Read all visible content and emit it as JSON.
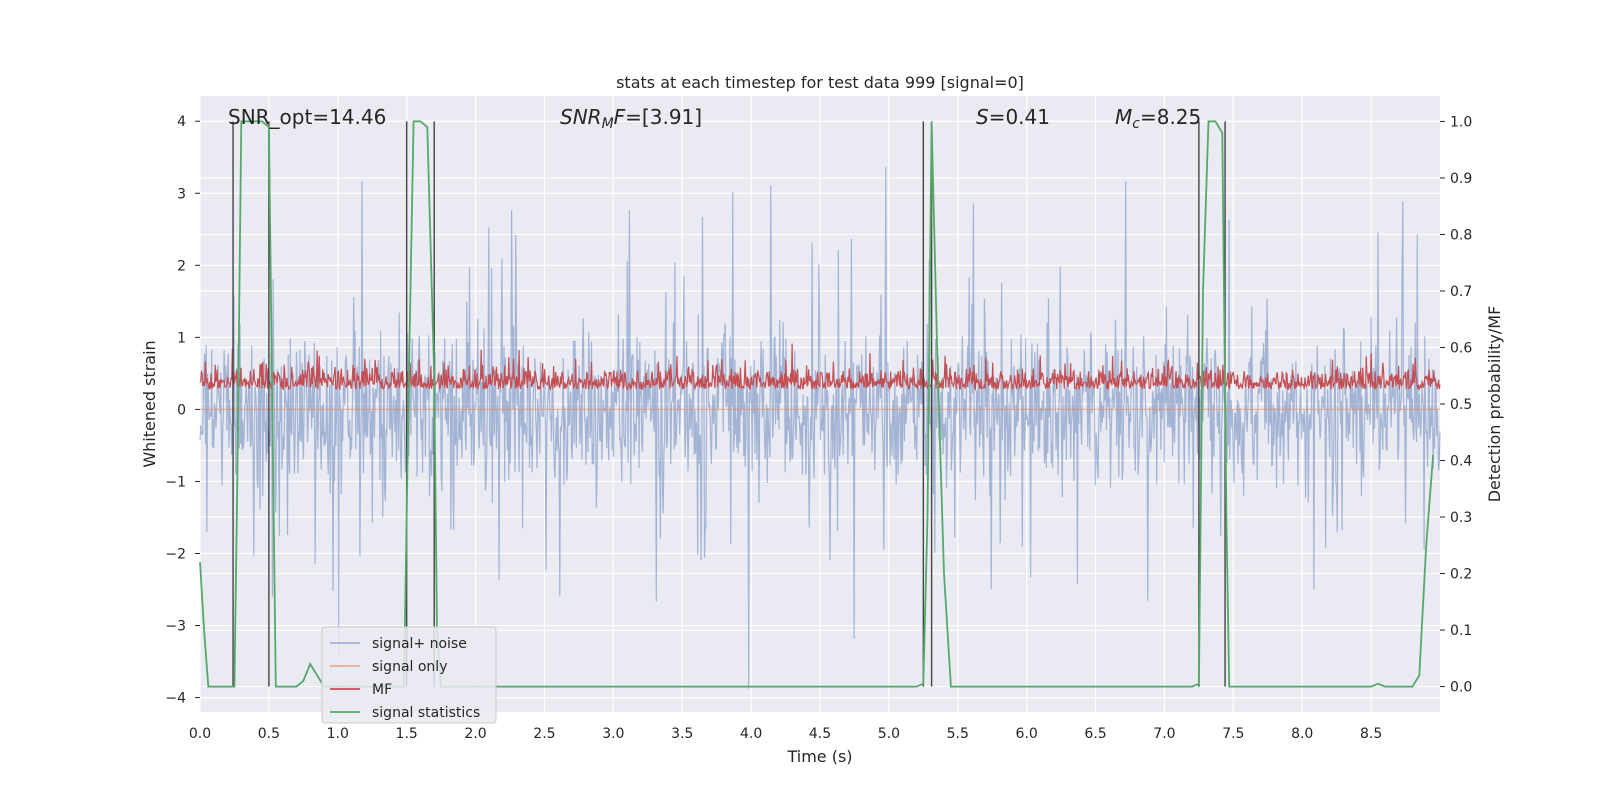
{
  "chart_data": {
    "type": "line",
    "title": "stats at each timestep for test data 999 [signal=0]",
    "xlabel": "Time (s)",
    "ylabel": "Whitened strain",
    "ylabel_right": "Detection probability/MF",
    "xlim": [
      0.0,
      9.0
    ],
    "ylim": [
      -4.2,
      4.35
    ],
    "ylim_right": [
      -0.045,
      1.045
    ],
    "xticks": [
      "0.0",
      "0.5",
      "1.0",
      "1.5",
      "2.0",
      "2.5",
      "3.0",
      "3.5",
      "4.0",
      "4.5",
      "5.0",
      "5.5",
      "6.0",
      "6.5",
      "7.0",
      "7.5",
      "8.0",
      "8.5"
    ],
    "yticks": [
      "4",
      "3",
      "2",
      "1",
      "0",
      "−1",
      "−2",
      "−3",
      "−4"
    ],
    "yticks_right": [
      "1.0",
      "0.9",
      "0.8",
      "0.7",
      "0.6",
      "0.5",
      "0.4",
      "0.3",
      "0.2",
      "0.1",
      "0.0"
    ],
    "grid": true,
    "legend_position": "lower-left",
    "colors": {
      "signal_noise": "#4c72b0",
      "signal_only": "#dd8452",
      "mf": "#c44e52",
      "signal_statistics": "#55a868",
      "markers": "#444444",
      "background": "#eaeaf2"
    },
    "annotations": {
      "snr_opt": "SNR_opt=14.46",
      "snr_mf_prefix": "SNR",
      "snr_mf_sub": "M",
      "snr_mf_suffix": "F",
      "snr_mf_value": "=[3.91]",
      "s_symbol": "S",
      "s_value": "=0.41",
      "mc_symbol": "M",
      "mc_sub": "c",
      "mc_value": "=8.25"
    },
    "series": [
      {
        "name": "signal+ noise",
        "axis": "left",
        "style": "noisy band, approx. range -3.9 to 3.9, bulk within ±1.5"
      },
      {
        "name": "signal only",
        "axis": "left",
        "values_constant": 0.0
      },
      {
        "name": "MF",
        "axis": "left",
        "style": "noisy, approx. 0.0 to 0.9"
      },
      {
        "name": "signal statistics",
        "axis": "right",
        "x": [
          0.0,
          0.03,
          0.06,
          0.1,
          0.15,
          0.2,
          0.25,
          0.27,
          0.3,
          0.35,
          0.4,
          0.45,
          0.5,
          0.52,
          0.55,
          0.6,
          0.65,
          0.7,
          0.75,
          0.8,
          0.85,
          0.9,
          0.95,
          1.0,
          1.1,
          1.2,
          1.3,
          1.4,
          1.48,
          1.52,
          1.55,
          1.6,
          1.65,
          1.7,
          1.72,
          1.75,
          1.8,
          1.85,
          2.0,
          2.5,
          3.0,
          3.5,
          4.0,
          4.5,
          5.0,
          5.2,
          5.25,
          5.28,
          5.31,
          5.35,
          5.4,
          5.45,
          5.5,
          6.0,
          6.5,
          7.0,
          7.2,
          7.25,
          7.28,
          7.32,
          7.37,
          7.42,
          7.45,
          7.47,
          7.5,
          8.0,
          8.5,
          8.55,
          8.6,
          8.8,
          8.85,
          8.9,
          8.95
        ],
        "y": [
          0.22,
          0.1,
          0.0,
          0.0,
          0.0,
          0.0,
          0.0,
          0.35,
          1.0,
          1.0,
          1.0,
          1.0,
          0.99,
          0.6,
          0.0,
          0.0,
          0.0,
          0.0,
          0.01,
          0.04,
          0.02,
          0.0,
          0.0,
          0.0,
          0.0,
          0.0,
          0.0,
          0.0,
          0.0,
          0.6,
          1.0,
          1.0,
          0.99,
          0.55,
          0.1,
          0.0,
          0.0,
          0.0,
          0.0,
          0.0,
          0.0,
          0.0,
          0.0,
          0.0,
          0.0,
          0.0,
          0.005,
          0.3,
          1.0,
          0.6,
          0.2,
          0.0,
          0.0,
          0.0,
          0.0,
          0.0,
          0.0,
          0.005,
          0.7,
          1.0,
          1.0,
          0.98,
          0.3,
          0.0,
          0.0,
          0.0,
          0.0,
          0.005,
          0.0,
          0.0,
          0.02,
          0.25,
          0.41
        ]
      }
    ],
    "detection_markers_x": [
      0.24,
      0.5,
      1.5,
      1.7,
      5.25,
      5.31,
      7.25,
      7.44
    ]
  },
  "legend": {
    "items": [
      {
        "label": "signal+ noise",
        "color": "#4c72b0",
        "opacity": 0.45
      },
      {
        "label": "signal only",
        "color": "#dd8452",
        "opacity": 0.6
      },
      {
        "label": "MF",
        "color": "#c44e52",
        "opacity": 1
      },
      {
        "label": "signal statistics",
        "color": "#55a868",
        "opacity": 1
      }
    ]
  }
}
